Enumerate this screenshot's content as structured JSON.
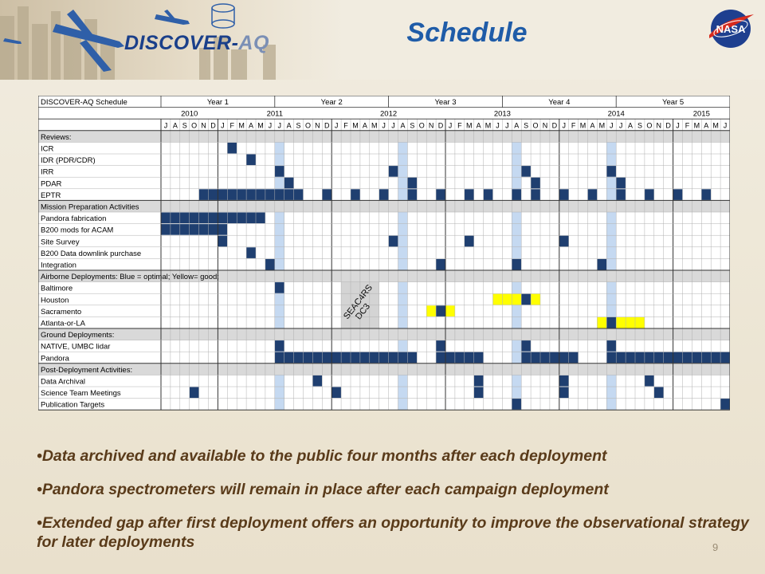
{
  "slide": {
    "title": "Schedule",
    "logo_main": "DISCOVER-",
    "logo_accent": "AQ",
    "nasa_logo": "NASA",
    "page_number": "9"
  },
  "schedule": {
    "table_title": "DISCOVER-AQ Schedule",
    "start_month": "2010-07",
    "month_count": 60,
    "years_program": [
      {
        "label": "Year 1",
        "months": 12
      },
      {
        "label": "Year 2",
        "months": 12
      },
      {
        "label": "Year 3",
        "months": 12
      },
      {
        "label": "Year 4",
        "months": 12
      },
      {
        "label": "Year 5",
        "months": 12
      }
    ],
    "calendar_years": [
      {
        "label": "2010",
        "months": 6
      },
      {
        "label": "2011",
        "months": 12
      },
      {
        "label": "2012",
        "months": 12
      },
      {
        "label": "2013",
        "months": 12
      },
      {
        "label": "2014",
        "months": 12
      },
      {
        "label": "2015",
        "months": 6
      }
    ],
    "month_letters": [
      "J",
      "A",
      "S",
      "O",
      "N",
      "D",
      "J",
      "F",
      "M",
      "A",
      "M",
      "J",
      "J",
      "A",
      "S",
      "O",
      "N",
      "D",
      "J",
      "F",
      "M",
      "A",
      "M",
      "J",
      "J",
      "A",
      "S",
      "O",
      "N",
      "D",
      "J",
      "F",
      "M",
      "A",
      "M",
      "J",
      "J",
      "A",
      "S",
      "O",
      "N",
      "D",
      "J",
      "F",
      "M",
      "A",
      "M",
      "J",
      "J",
      "A",
      "S",
      "O",
      "N",
      "D",
      "J",
      "F",
      "M",
      "A",
      "M",
      "J"
    ],
    "deployment_highlight_months": [
      12,
      25,
      37,
      47
    ],
    "seac4rs_label": "SEAC4RS",
    "dc3_label": "DC3",
    "seac4rs_months": [
      19,
      22
    ],
    "colors": {
      "blue": "#1f3f70",
      "yellow": "#ffff00",
      "highlight": "#c5d9f1",
      "section": "#d9d9d9",
      "seac": "#d4d4d4"
    },
    "rows": [
      {
        "label": "Reviews:",
        "section": true
      },
      {
        "label": "ICR",
        "blue": [
          7
        ]
      },
      {
        "label": "IDR (PDR/CDR)",
        "blue": [
          9
        ]
      },
      {
        "label": "IRR",
        "blue": [
          12,
          24,
          38,
          47
        ]
      },
      {
        "label": "PDAR",
        "blue": [
          13,
          26,
          39,
          48
        ]
      },
      {
        "label": "EPTR",
        "blue": [
          [
            4,
            14
          ],
          17,
          20,
          23,
          26,
          29,
          32,
          34,
          37,
          39,
          42,
          45,
          48,
          51,
          54,
          57
        ]
      },
      {
        "label": "Mission Preparation Activities",
        "section": true
      },
      {
        "label": "Pandora fabrication",
        "blue": [
          [
            0,
            10
          ]
        ]
      },
      {
        "label": "B200 mods for ACAM",
        "blue": [
          [
            0,
            6
          ]
        ]
      },
      {
        "label": "Site Survey",
        "blue": [
          6,
          24,
          32,
          42
        ]
      },
      {
        "label": "B200 Data downlink purchase",
        "blue": [
          9
        ]
      },
      {
        "label": "Integration",
        "blue": [
          11,
          29,
          37,
          46
        ]
      },
      {
        "label": "Airborne Deployments: Blue = optimal; Yellow= good;",
        "section": true
      },
      {
        "label": "Baltimore",
        "blue": [
          12
        ]
      },
      {
        "label": "Houston",
        "blue": [
          38
        ],
        "yellow": [
          [
            35,
            37
          ],
          39
        ]
      },
      {
        "label": "Sacramento",
        "blue": [
          29
        ],
        "yellow": [
          28,
          30
        ]
      },
      {
        "label": "Atlanta-or-LA",
        "blue": [
          47
        ],
        "yellow": [
          46,
          [
            48,
            50
          ]
        ]
      },
      {
        "label": "Ground Deployments:",
        "section": true
      },
      {
        "label": "NATIVE, UMBC lidar",
        "blue": [
          12,
          29,
          38,
          47
        ]
      },
      {
        "label": "Pandora",
        "blue": [
          [
            12,
            26
          ],
          [
            29,
            33
          ],
          [
            38,
            43
          ],
          [
            47,
            59
          ]
        ]
      },
      {
        "label": "Post-Deployment Activities:",
        "section": true
      },
      {
        "label": "Data Archival",
        "blue": [
          16,
          33,
          42,
          51
        ]
      },
      {
        "label": "Science Team Meetings",
        "blue": [
          3,
          18,
          33,
          42,
          52
        ]
      },
      {
        "label": "Publication Targets",
        "blue": [
          37,
          59
        ]
      }
    ]
  },
  "bullets": [
    "•Data archived and available to the public four months after each deployment",
    "•Pandora spectrometers will remain in place after each campaign deployment",
    "•Extended gap after first deployment offers an opportunity to improve the observational strategy for later deployments"
  ]
}
